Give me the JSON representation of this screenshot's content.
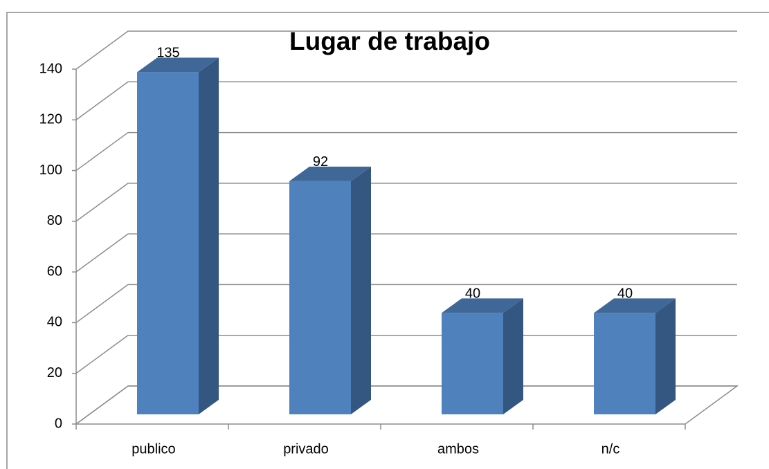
{
  "chart_data": {
    "type": "bar3d",
    "title": "Lugar de trabajo",
    "categories": [
      "publico",
      "privado",
      "ambos",
      "n/c"
    ],
    "values": [
      135,
      92,
      40,
      40
    ],
    "color": "#4f81bd",
    "ylim": [
      0,
      140
    ],
    "yticks": [
      0,
      20,
      40,
      60,
      80,
      100,
      120,
      140
    ],
    "grid": true
  }
}
